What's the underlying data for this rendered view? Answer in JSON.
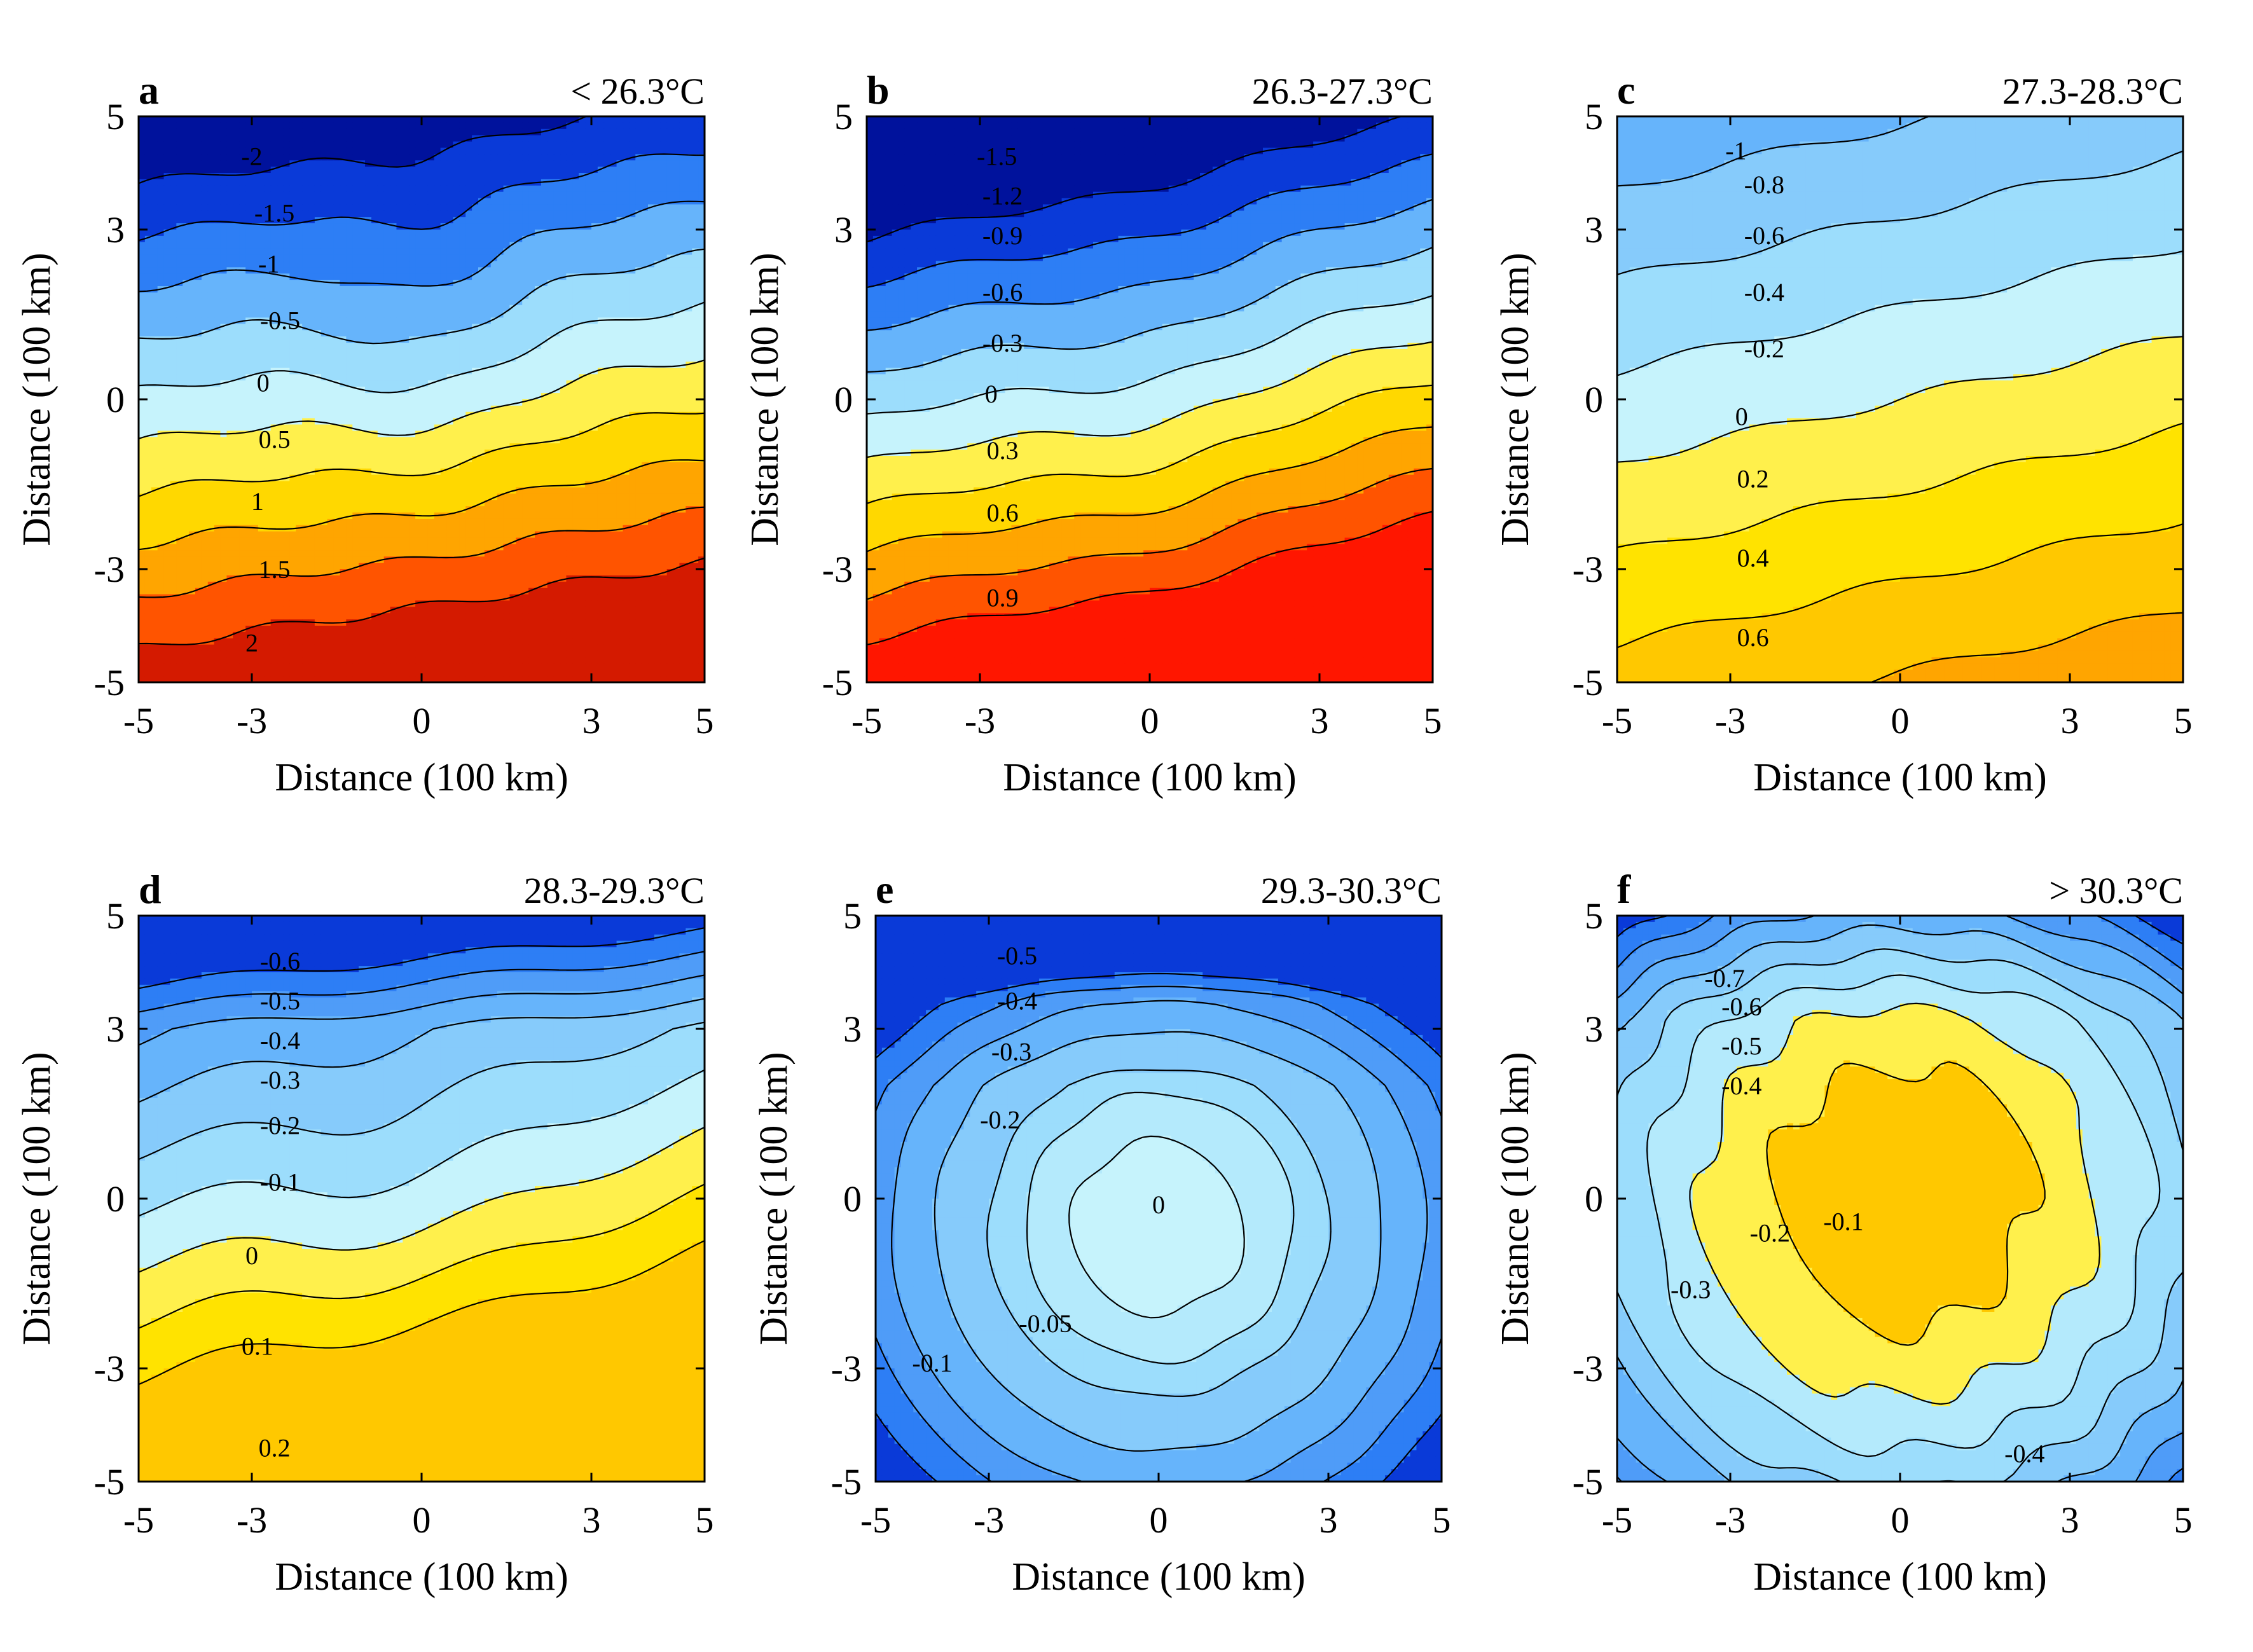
{
  "chart_data": [
    {
      "id": "a",
      "type": "contour",
      "panel_label": "a",
      "title": "< 26.3°C",
      "xlabel": "Distance (100 km)",
      "ylabel": "Distance (100 km)",
      "xlim": [
        -5,
        5
      ],
      "ylim": [
        -5,
        5
      ],
      "xticks": [
        "-5",
        "-3",
        "0",
        "3",
        "5"
      ],
      "yticks": [
        "5",
        "3",
        "0",
        "-3",
        "-5"
      ],
      "levels": [
        -2.5,
        -2,
        -1.5,
        -1,
        -0.5,
        0,
        0.5,
        1,
        1.5,
        2
      ],
      "fill_colors": [
        "#00129c",
        "#0a3ad8",
        "#2d7ef5",
        "#66b4fb",
        "#9cddfc",
        "#c6f3fc",
        "#fff04c",
        "#ffd800",
        "#ffa500",
        "#ff5400",
        "#d41a00"
      ],
      "contour_labels": [
        {
          "text": "-2",
          "x": -3.0,
          "y": 4.3
        },
        {
          "text": "-1.5",
          "x": -2.6,
          "y": 3.3
        },
        {
          "text": "-1",
          "x": -2.7,
          "y": 2.4
        },
        {
          "text": "-0.5",
          "x": -2.5,
          "y": 1.4
        },
        {
          "text": "0",
          "x": -2.8,
          "y": 0.3
        },
        {
          "text": "0.5",
          "x": -2.6,
          "y": -0.7
        },
        {
          "text": "1",
          "x": -2.9,
          "y": -1.8
        },
        {
          "text": "1.5",
          "x": -2.6,
          "y": -3.0
        },
        {
          "text": "2",
          "x": -3.0,
          "y": -4.3
        }
      ]
    },
    {
      "id": "b",
      "type": "contour",
      "panel_label": "b",
      "title": "26.3-27.3°C",
      "xlabel": "Distance (100 km)",
      "ylabel": "Distance (100 km)",
      "xlim": [
        -5,
        5
      ],
      "ylim": [
        -5,
        5
      ],
      "xticks": [
        "-5",
        "-3",
        "0",
        "3",
        "5"
      ],
      "yticks": [
        "5",
        "3",
        "0",
        "-3",
        "-5"
      ],
      "levels": [
        -1.5,
        -1.2,
        -0.9,
        -0.6,
        -0.3,
        0,
        0.3,
        0.6,
        0.9,
        1.2
      ],
      "fill_colors": [
        "#00129c",
        "#0a3ad8",
        "#2d7ef5",
        "#66b4fb",
        "#9cddfc",
        "#c6f3fc",
        "#fff04c",
        "#ffd800",
        "#ffa500",
        "#ff5400",
        "#ff1600"
      ],
      "contour_labels": [
        {
          "text": "-1.5",
          "x": -2.7,
          "y": 4.3
        },
        {
          "text": "-1.2",
          "x": -2.6,
          "y": 3.6
        },
        {
          "text": "-0.9",
          "x": -2.6,
          "y": 2.9
        },
        {
          "text": "-0.6",
          "x": -2.6,
          "y": 1.9
        },
        {
          "text": "-0.3",
          "x": -2.6,
          "y": 1.0
        },
        {
          "text": "0",
          "x": -2.8,
          "y": 0.1
        },
        {
          "text": "0.3",
          "x": -2.6,
          "y": -0.9
        },
        {
          "text": "0.6",
          "x": -2.6,
          "y": -2.0
        },
        {
          "text": "0.9",
          "x": -2.6,
          "y": -3.5
        }
      ]
    },
    {
      "id": "c",
      "type": "contour",
      "panel_label": "c",
      "title": "27.3-28.3°C",
      "xlabel": "Distance (100 km)",
      "ylabel": "Distance (100 km)",
      "xlim": [
        -5,
        5
      ],
      "ylim": [
        -5,
        5
      ],
      "xticks": [
        "-5",
        "-3",
        "0",
        "3",
        "5"
      ],
      "yticks": [
        "5",
        "3",
        "0",
        "-3",
        "-5"
      ],
      "levels": [
        -1,
        -0.8,
        -0.6,
        -0.4,
        -0.2,
        0,
        0.2,
        0.4,
        0.6
      ],
      "fill_colors": [
        "#1f5de6",
        "#2d7ef5",
        "#66b4fb",
        "#86cbfb",
        "#9cddfc",
        "#c6f3fc",
        "#fff04c",
        "#ffe300",
        "#ffc800",
        "#ffa500"
      ],
      "contour_labels": [
        {
          "text": "-1",
          "x": -2.9,
          "y": 4.4
        },
        {
          "text": "-0.8",
          "x": -2.4,
          "y": 3.8
        },
        {
          "text": "-0.6",
          "x": -2.4,
          "y": 2.9
        },
        {
          "text": "-0.4",
          "x": -2.4,
          "y": 1.9
        },
        {
          "text": "-0.2",
          "x": -2.4,
          "y": 0.9
        },
        {
          "text": "0",
          "x": -2.8,
          "y": -0.3
        },
        {
          "text": "0.2",
          "x": -2.6,
          "y": -1.4
        },
        {
          "text": "0.4",
          "x": -2.6,
          "y": -2.8
        },
        {
          "text": "0.6",
          "x": -2.6,
          "y": -4.2
        }
      ]
    },
    {
      "id": "d",
      "type": "contour",
      "panel_label": "d",
      "title": "28.3-29.3°C",
      "xlabel": "Distance (100 km)",
      "ylabel": "Distance (100 km)",
      "xlim": [
        -5,
        5
      ],
      "ylim": [
        -5,
        5
      ],
      "xticks": [
        "-5",
        "-3",
        "0",
        "3",
        "5"
      ],
      "yticks": [
        "5",
        "3",
        "0",
        "-3",
        "-5"
      ],
      "levels": [
        -0.6,
        -0.5,
        -0.4,
        -0.3,
        -0.2,
        -0.1,
        0,
        0.1,
        0.2
      ],
      "fill_colors": [
        "#0a3ad8",
        "#2d7ef5",
        "#4f9cf8",
        "#66b4fb",
        "#86cbfb",
        "#9cddfc",
        "#c6f3fc",
        "#fff04c",
        "#ffe300",
        "#ffc800"
      ],
      "contour_labels": [
        {
          "text": "-0.6",
          "x": -2.5,
          "y": 4.2
        },
        {
          "text": "-0.5",
          "x": -2.5,
          "y": 3.5
        },
        {
          "text": "-0.4",
          "x": -2.5,
          "y": 2.8
        },
        {
          "text": "-0.3",
          "x": -2.5,
          "y": 2.1
        },
        {
          "text": "-0.2",
          "x": -2.5,
          "y": 1.3
        },
        {
          "text": "-0.1",
          "x": -2.5,
          "y": 0.3
        },
        {
          "text": "0",
          "x": -3.0,
          "y": -1.0
        },
        {
          "text": "0.1",
          "x": -2.9,
          "y": -2.6
        },
        {
          "text": "0.2",
          "x": -2.6,
          "y": -4.4
        }
      ]
    },
    {
      "id": "e",
      "type": "contour",
      "panel_label": "e",
      "title": "29.3-30.3°C",
      "xlabel": "Distance (100 km)",
      "ylabel": "Distance (100 km)",
      "xlim": [
        -5,
        5
      ],
      "ylim": [
        -5,
        5
      ],
      "xticks": [
        "-5",
        "-3",
        "0",
        "3",
        "5"
      ],
      "yticks": [
        "5",
        "3",
        "0",
        "-3",
        "-5"
      ],
      "levels": [
        -0.5,
        -0.4,
        -0.3,
        -0.2,
        -0.1,
        -0.05,
        0
      ],
      "fill_colors": [
        "#0a3ad8",
        "#2d7ef5",
        "#4f9cf8",
        "#66b4fb",
        "#86cbfb",
        "#9cddfc",
        "#b4eafc",
        "#c6f3fc",
        "#fff04c"
      ],
      "contour_labels": [
        {
          "text": "-0.5",
          "x": -2.5,
          "y": 4.3
        },
        {
          "text": "-0.4",
          "x": -2.5,
          "y": 3.5
        },
        {
          "text": "-0.3",
          "x": -2.6,
          "y": 2.6
        },
        {
          "text": "-0.2",
          "x": -2.8,
          "y": 1.4
        },
        {
          "text": "0",
          "x": 0.0,
          "y": -0.1
        },
        {
          "text": "-0.05",
          "x": -2.0,
          "y": -2.2
        },
        {
          "text": "-0.1",
          "x": -4.0,
          "y": -2.9
        }
      ]
    },
    {
      "id": "f",
      "type": "contour",
      "panel_label": "f",
      "title": "> 30.3°C",
      "xlabel": "Distance (100 km)",
      "ylabel": "Distance (100 km)",
      "xlim": [
        -5,
        5
      ],
      "ylim": [
        -5,
        5
      ],
      "xticks": [
        "-5",
        "-3",
        "0",
        "3",
        "5"
      ],
      "yticks": [
        "5",
        "3",
        "0",
        "-3",
        "-5"
      ],
      "levels": [
        -0.8,
        -0.7,
        -0.6,
        -0.5,
        -0.4,
        -0.3,
        -0.2,
        -0.1
      ],
      "fill_colors": [
        "#0a3ad8",
        "#2d7ef5",
        "#4f9cf8",
        "#66b4fb",
        "#86cbfb",
        "#9cddfc",
        "#b4eafc",
        "#fff04c",
        "#ffc800"
      ],
      "contour_labels": [
        {
          "text": "-0.7",
          "x": -3.1,
          "y": 3.9
        },
        {
          "text": "-0.6",
          "x": -2.8,
          "y": 3.4
        },
        {
          "text": "-0.5",
          "x": -2.8,
          "y": 2.7
        },
        {
          "text": "-0.4",
          "x": -2.8,
          "y": 2.0
        },
        {
          "text": "-0.3",
          "x": -3.7,
          "y": -1.6
        },
        {
          "text": "-0.2",
          "x": -2.3,
          "y": -0.6
        },
        {
          "text": "-0.1",
          "x": -1.0,
          "y": -0.4
        },
        {
          "text": "-0.4",
          "x": 2.2,
          "y": -4.5
        }
      ]
    }
  ]
}
